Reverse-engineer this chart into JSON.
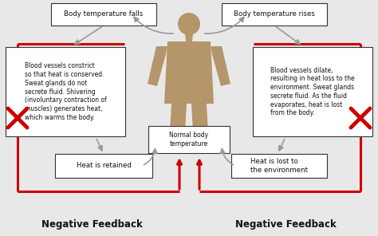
{
  "bg_color": "#e8e8e8",
  "box_top_left_text": "Body temperature falls",
  "box_top_right_text": "Body temperature rises",
  "box_mid_left_text": "Blood vessels constrict\nso that heat is conserved.\nSweat glands do not\nsecrete fluid. Shivering\n(involuntary contraction of\nmuscles) generates heat,\nwhich warms the body.",
  "box_mid_right_text": "Blood vessels dilate,\nresulting in heat loss to the\nenvironment. Sweat glands\nsecrete fluid. As the fluid\nevaporates, heat is lost\nfrom the body.",
  "box_bot_left_text": "Heat is retained",
  "box_bot_right_text": "Heat is lost to\nthe environment",
  "box_center_text": "Normal body\ntemperature",
  "label_left": "Negative Feedback",
  "label_right": "Negative Feedback",
  "red_color": "#cc0000",
  "arrow_color": "#999999",
  "box_face": "#ffffff",
  "box_edge": "#333333",
  "body_color": "#b5956a",
  "text_color": "#111111",
  "fontsize_tiny": 5.5,
  "fontsize_small": 6.2,
  "fontsize_label": 8.5
}
